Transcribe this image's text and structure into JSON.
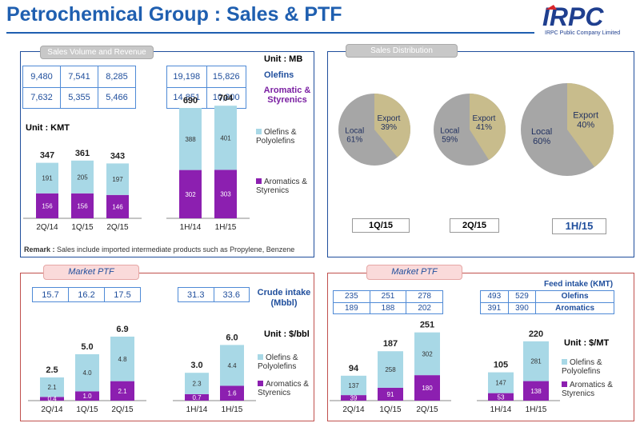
{
  "header": {
    "title": "Petrochemical Group : Sales & PTF",
    "company": "IRPC Public Company Limited"
  },
  "colors": {
    "blue": "#1f4e9c",
    "purple": "#7a1fa2",
    "lightblue": "#a8d8e6",
    "violet": "#8c1fb0",
    "tan": "#c8bc8c",
    "gray": "#a6a6a6"
  },
  "sales": {
    "tab": "Sales Volume and Revenue",
    "unit_mb": "Unit : MB",
    "unit_kmt": "Unit : KMT",
    "rev_quarter": [
      [
        "9,480",
        "7,541",
        "8,285"
      ],
      [
        "7,632",
        "5,355",
        "5,466"
      ]
    ],
    "rev_half": [
      [
        "19,198",
        "15,826"
      ],
      [
        "14,851",
        "10,800"
      ]
    ],
    "rev_labels": [
      "Olefins",
      "Aromatic & Styrenics"
    ],
    "legend": [
      "Olefins & Polyolefins",
      "Aromatics & Styrenics"
    ],
    "remark_label": "Remark :",
    "remark": "Sales include imported intermediate products such as Propylene, Benzene"
  },
  "distribution": {
    "tab": "Sales  Distribution",
    "period_labels": [
      "1Q/15",
      "2Q/15",
      "1H/15"
    ]
  },
  "ptf_left": {
    "tab": "Market PTF",
    "crude_quarter": [
      "15.7",
      "16.2",
      "17.5"
    ],
    "crude_half": [
      "31.3",
      "33.6"
    ],
    "crude_label": "Crude intake (Mbbl)",
    "unit": "Unit : $/bbl",
    "legend": [
      "Olefins & Polyolefins",
      "Aromatics & Styrenics"
    ]
  },
  "ptf_right": {
    "tab": "Market PTF",
    "feed_label": "Feed intake (KMT)",
    "feed_quarter": [
      [
        "235",
        "251",
        "278"
      ],
      [
        "189",
        "188",
        "202"
      ]
    ],
    "feed_half": [
      [
        "493",
        "529",
        "Olefins"
      ],
      [
        "391",
        "390",
        "Aromatics"
      ]
    ],
    "unit": "Unit : $/MT",
    "legend": [
      "Olefins & Polyolefins",
      "Aromatics & Styrenics"
    ]
  },
  "chart_data": [
    {
      "type": "bar",
      "title": "",
      "categories": [
        "2Q/14",
        "1Q/15",
        "2Q/15",
        "1H/14",
        "1H/15"
      ],
      "series": [
        {
          "name": "Aromatics & Styrenics",
          "values": [
            156,
            156,
            146,
            302,
            303
          ]
        },
        {
          "name": "Olefins & Polyolefins",
          "values": [
            191,
            205,
            197,
            388,
            401
          ]
        }
      ],
      "totals": [
        347,
        361,
        343,
        690,
        704
      ]
    },
    {
      "type": "pie",
      "title": "1Q/15",
      "series": [
        {
          "name": "Local",
          "value": 61,
          "label": "Local 61%"
        },
        {
          "name": "Export",
          "value": 39,
          "label": "Export 39%"
        }
      ]
    },
    {
      "type": "pie",
      "title": "2Q/15",
      "series": [
        {
          "name": "Local",
          "value": 59,
          "label": "Local 59%"
        },
        {
          "name": "Export",
          "value": 41,
          "label": "Export 41%"
        }
      ]
    },
    {
      "type": "pie",
      "title": "1H/15",
      "series": [
        {
          "name": "Local",
          "value": 60,
          "label": "Local 60%"
        },
        {
          "name": "Export",
          "value": 40,
          "label": "Export 40%"
        }
      ]
    },
    {
      "type": "bar",
      "title": "",
      "categories": [
        "2Q/14",
        "1Q/15",
        "2Q/15",
        "1H/14",
        "1H/15"
      ],
      "series": [
        {
          "name": "Aromatics & Styrenics",
          "values": [
            0.4,
            1.0,
            2.1,
            0.7,
            1.6
          ]
        },
        {
          "name": "Olefins & Polyolefins",
          "values": [
            2.1,
            4.0,
            4.8,
            2.3,
            4.4
          ]
        }
      ],
      "totals": [
        2.5,
        5.0,
        6.9,
        3.0,
        6.0
      ]
    },
    {
      "type": "bar",
      "title": "",
      "categories": [
        "2Q/14",
        "1Q/15",
        "2Q/15",
        "1H/14",
        "1H/15"
      ],
      "series": [
        {
          "name": "Aromatics & Styrenics",
          "values": [
            39,
            91,
            180,
            53,
            138
          ]
        },
        {
          "name": "Olefins & Polyolefins",
          "values": [
            137,
            258,
            302,
            147,
            281
          ]
        }
      ],
      "totals": [
        94,
        187,
        251,
        105,
        220
      ]
    }
  ]
}
